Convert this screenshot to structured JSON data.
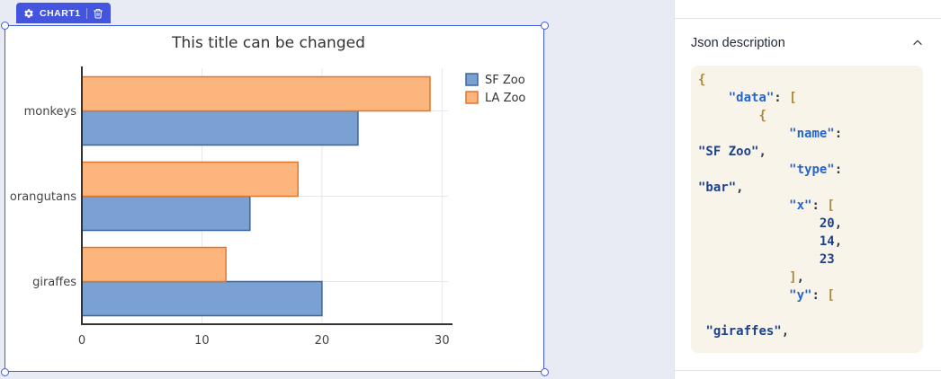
{
  "canvas": {
    "badge": {
      "label": "CHART1"
    }
  },
  "chart_data": {
    "type": "bar",
    "orientation": "horizontal",
    "title": "This title can be changed",
    "categories": [
      "giraffes",
      "orangutans",
      "monkeys"
    ],
    "series": [
      {
        "name": "SF Zoo",
        "values": [
          20,
          14,
          23
        ],
        "fill": "#7aa1d2",
        "border": "#38669f"
      },
      {
        "name": "LA Zoo",
        "values": [
          12,
          18,
          29
        ],
        "fill": "#fdb57e",
        "border": "#e0762a"
      }
    ],
    "x_ticks": [
      0,
      10,
      20,
      30
    ],
    "xlim": [
      0,
      30.5
    ],
    "grid": true,
    "legend_position": "top-right",
    "colors": {
      "grid": "#e7e7e7",
      "axis": "#333333",
      "tick_text": "#444444"
    }
  },
  "panel": {
    "header_label": "Json description",
    "code": {
      "lines": [
        [
          {
            "c": "b",
            "t": "{"
          }
        ],
        [
          {
            "c": "w",
            "t": "    "
          },
          {
            "c": "k",
            "t": "\"data\""
          },
          {
            "c": "p",
            "t": ": "
          },
          {
            "c": "b",
            "t": "["
          }
        ],
        [
          {
            "c": "w",
            "t": "        "
          },
          {
            "c": "b",
            "t": "{"
          }
        ],
        [
          {
            "c": "w",
            "t": "            "
          },
          {
            "c": "k",
            "t": "\"name\""
          },
          {
            "c": "p",
            "t": ":"
          }
        ],
        [
          {
            "c": "s",
            "t": "\"SF Zoo\""
          },
          {
            "c": "p",
            "t": ","
          }
        ],
        [
          {
            "c": "w",
            "t": "            "
          },
          {
            "c": "k",
            "t": "\"type\""
          },
          {
            "c": "p",
            "t": ":"
          }
        ],
        [
          {
            "c": "s",
            "t": "\"bar\""
          },
          {
            "c": "p",
            "t": ","
          }
        ],
        [
          {
            "c": "w",
            "t": "            "
          },
          {
            "c": "k",
            "t": "\"x\""
          },
          {
            "c": "p",
            "t": ": "
          },
          {
            "c": "b",
            "t": "["
          }
        ],
        [
          {
            "c": "w",
            "t": "                "
          },
          {
            "c": "n",
            "t": "20"
          },
          {
            "c": "p",
            "t": ","
          }
        ],
        [
          {
            "c": "w",
            "t": "                "
          },
          {
            "c": "n",
            "t": "14"
          },
          {
            "c": "p",
            "t": ","
          }
        ],
        [
          {
            "c": "w",
            "t": "                "
          },
          {
            "c": "n",
            "t": "23"
          }
        ],
        [
          {
            "c": "w",
            "t": "            "
          },
          {
            "c": "b",
            "t": "]"
          },
          {
            "c": "p",
            "t": ","
          }
        ],
        [
          {
            "c": "w",
            "t": "            "
          },
          {
            "c": "k",
            "t": "\"y\""
          },
          {
            "c": "p",
            "t": ": "
          },
          {
            "c": "b",
            "t": "["
          }
        ],
        [],
        [
          {
            "c": "w",
            "t": " "
          },
          {
            "c": "s",
            "t": "\"giraffes\""
          },
          {
            "c": "p",
            "t": ","
          }
        ]
      ]
    }
  }
}
